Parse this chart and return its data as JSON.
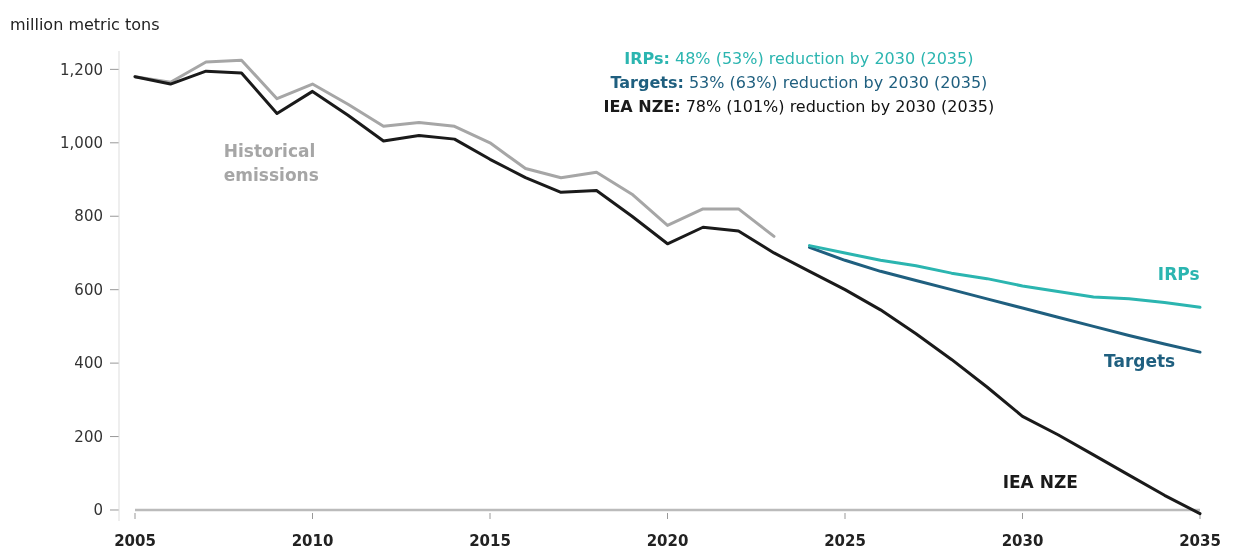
{
  "chart_data": {
    "type": "line",
    "ylabel": "million metric tons",
    "x": [
      2005,
      2006,
      2007,
      2008,
      2009,
      2010,
      2011,
      2012,
      2013,
      2014,
      2015,
      2016,
      2017,
      2018,
      2019,
      2020,
      2021,
      2022,
      2023,
      2024,
      2025,
      2026,
      2027,
      2028,
      2029,
      2030,
      2031,
      2032,
      2033,
      2034,
      2035
    ],
    "series": [
      {
        "name": "Historical emissions",
        "color": "#a6a6a6",
        "x": [
          2005,
          2006,
          2007,
          2008,
          2009,
          2010,
          2011,
          2012,
          2013,
          2014,
          2015,
          2016,
          2017,
          2018,
          2019,
          2020,
          2021,
          2022,
          2023
        ],
        "values": [
          1180,
          1165,
          1220,
          1225,
          1120,
          1160,
          1105,
          1045,
          1055,
          1045,
          1000,
          930,
          905,
          920,
          860,
          775,
          820,
          820,
          745
        ]
      },
      {
        "name": "IEA NZE",
        "color": "#1a1a1a",
        "values": [
          1180,
          1160,
          1195,
          1190,
          1080,
          1140,
          1075,
          1005,
          1020,
          1010,
          955,
          905,
          865,
          870,
          800,
          725,
          770,
          760,
          700,
          650,
          600,
          545,
          480,
          410,
          335,
          255,
          205,
          150,
          95,
          40,
          -10
        ]
      },
      {
        "name": "Targets",
        "color": "#1f5f7f",
        "x": [
          2024,
          2025,
          2026,
          2027,
          2028,
          2029,
          2030,
          2031,
          2032,
          2033,
          2034,
          2035
        ],
        "values": [
          715,
          680,
          650,
          625,
          600,
          575,
          550,
          525,
          500,
          475,
          452,
          430
        ]
      },
      {
        "name": "IRPs",
        "color": "#2bb5b0",
        "x": [
          2024,
          2025,
          2026,
          2027,
          2028,
          2029,
          2030,
          2031,
          2032,
          2033,
          2034,
          2035
        ],
        "values": [
          720,
          700,
          680,
          665,
          645,
          630,
          610,
          595,
          580,
          575,
          565,
          552
        ]
      }
    ],
    "xlim": [
      2005,
      2035
    ],
    "xticks": [
      2005,
      2010,
      2015,
      2020,
      2025,
      2030,
      2035
    ],
    "ylim": [
      -30,
      1250
    ],
    "yticks": [
      0,
      {
        "value": 200,
        "label": "200"
      },
      {
        "value": 400,
        "label": "400"
      },
      {
        "value": 600,
        "label": "600"
      },
      {
        "value": 800,
        "label": "800"
      },
      {
        "value": 1000,
        "label": "1,000"
      },
      {
        "value": 1200,
        "label": "1,200"
      }
    ],
    "grid": false,
    "legend": false,
    "marker": "none",
    "line_style": "solid",
    "annotations": [
      "IRPs: 48% (53%) reduction by 2030 (2035)",
      "Targets: 53% (63%) reduction by 2030 (2035)",
      "IEA NZE: 78% (101%) reduction by 2030 (2035)"
    ]
  }
}
